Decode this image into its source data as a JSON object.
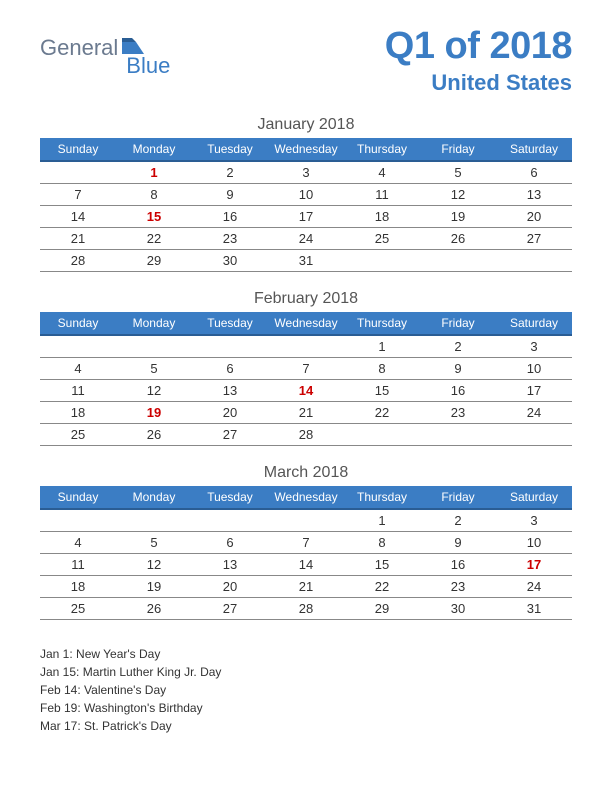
{
  "logo": {
    "part1": "General",
    "part2": "Blue"
  },
  "title": {
    "main": "Q1 of 2018",
    "sub": "United States"
  },
  "colors": {
    "header_bg": "#3b7dc4",
    "header_text": "#ffffff",
    "title_color": "#3b7dc4",
    "holiday_color": "#cc0000",
    "border_color": "#888888",
    "logo_gray": "#6b7a8f"
  },
  "day_headers": [
    "Sunday",
    "Monday",
    "Tuesday",
    "Wednesday",
    "Thursday",
    "Friday",
    "Saturday"
  ],
  "months": [
    {
      "name": "January 2018",
      "weeks": [
        [
          "",
          {
            "d": "1",
            "h": true
          },
          "2",
          "3",
          "4",
          "5",
          "6"
        ],
        [
          "7",
          "8",
          "9",
          "10",
          "11",
          "12",
          "13"
        ],
        [
          "14",
          {
            "d": "15",
            "h": true
          },
          "16",
          "17",
          "18",
          "19",
          "20"
        ],
        [
          "21",
          "22",
          "23",
          "24",
          "25",
          "26",
          "27"
        ],
        [
          "28",
          "29",
          "30",
          "31",
          "",
          "",
          ""
        ]
      ]
    },
    {
      "name": "February 2018",
      "weeks": [
        [
          "",
          "",
          "",
          "",
          "1",
          "2",
          "3"
        ],
        [
          "4",
          "5",
          "6",
          "7",
          "8",
          "9",
          "10"
        ],
        [
          "11",
          "12",
          "13",
          {
            "d": "14",
            "h": true
          },
          "15",
          "16",
          "17"
        ],
        [
          "18",
          {
            "d": "19",
            "h": true
          },
          "20",
          "21",
          "22",
          "23",
          "24"
        ],
        [
          "25",
          "26",
          "27",
          "28",
          "",
          "",
          ""
        ]
      ]
    },
    {
      "name": "March 2018",
      "weeks": [
        [
          "",
          "",
          "",
          "",
          "1",
          "2",
          "3"
        ],
        [
          "4",
          "5",
          "6",
          "7",
          "8",
          "9",
          "10"
        ],
        [
          "11",
          "12",
          "13",
          "14",
          "15",
          "16",
          {
            "d": "17",
            "h": true
          }
        ],
        [
          "18",
          "19",
          "20",
          "21",
          "22",
          "23",
          "24"
        ],
        [
          "25",
          "26",
          "27",
          "28",
          "29",
          "30",
          "31"
        ]
      ]
    }
  ],
  "holidays": [
    "Jan 1: New Year's Day",
    "Jan 15: Martin Luther King Jr. Day",
    "Feb 14: Valentine's Day",
    "Feb 19: Washington's Birthday",
    "Mar 17: St. Patrick's Day"
  ]
}
